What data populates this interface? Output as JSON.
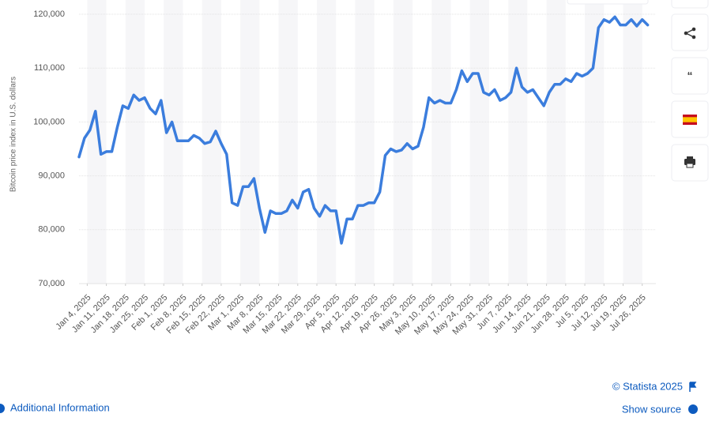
{
  "chart_data": {
    "type": "line",
    "y_label": "Bitcoin price index in U.S. dollars",
    "color": "#3b7ddd",
    "grid": true,
    "x": [
      "2025-01-01",
      "2025-01-03",
      "2025-01-05",
      "2025-01-07",
      "2025-01-09",
      "2025-01-11",
      "2025-01-13",
      "2025-01-15",
      "2025-01-17",
      "2025-01-19",
      "2025-01-21",
      "2025-01-23",
      "2025-01-25",
      "2025-01-27",
      "2025-01-29",
      "2025-01-31",
      "2025-02-02",
      "2025-02-04",
      "2025-02-06",
      "2025-02-08",
      "2025-02-10",
      "2025-02-12",
      "2025-02-14",
      "2025-02-16",
      "2025-02-18",
      "2025-02-20",
      "2025-02-22",
      "2025-02-24",
      "2025-02-26",
      "2025-02-28",
      "2025-03-02",
      "2025-03-04",
      "2025-03-06",
      "2025-03-08",
      "2025-03-10",
      "2025-03-12",
      "2025-03-14",
      "2025-03-16",
      "2025-03-18",
      "2025-03-20",
      "2025-03-22",
      "2025-03-24",
      "2025-03-26",
      "2025-03-28",
      "2025-03-30",
      "2025-04-01",
      "2025-04-03",
      "2025-04-05",
      "2025-04-07",
      "2025-04-09",
      "2025-04-11",
      "2025-04-13",
      "2025-04-15",
      "2025-04-17",
      "2025-04-19",
      "2025-04-21",
      "2025-04-23",
      "2025-04-25",
      "2025-04-27",
      "2025-04-29",
      "2025-05-01",
      "2025-05-03",
      "2025-05-05",
      "2025-05-07",
      "2025-05-09",
      "2025-05-11",
      "2025-05-13",
      "2025-05-15",
      "2025-05-17",
      "2025-05-19",
      "2025-05-21",
      "2025-05-23",
      "2025-05-25",
      "2025-05-27",
      "2025-05-29",
      "2025-05-31",
      "2025-06-02",
      "2025-06-04",
      "2025-06-06",
      "2025-06-08",
      "2025-06-10",
      "2025-06-12",
      "2025-06-14",
      "2025-06-16",
      "2025-06-18",
      "2025-06-20",
      "2025-06-22",
      "2025-06-24",
      "2025-06-26",
      "2025-06-28",
      "2025-06-30",
      "2025-07-02",
      "2025-07-04",
      "2025-07-06",
      "2025-07-08",
      "2025-07-10",
      "2025-07-12",
      "2025-07-14",
      "2025-07-16",
      "2025-07-18",
      "2025-07-20",
      "2025-07-22",
      "2025-07-24",
      "2025-07-26",
      "2025-07-28"
    ],
    "values": [
      93500,
      97000,
      98500,
      102000,
      94000,
      94500,
      94500,
      99000,
      103000,
      102500,
      105000,
      104000,
      104500,
      102500,
      101500,
      104000,
      98000,
      100000,
      96500,
      96500,
      96500,
      97500,
      97000,
      96000,
      96300,
      98300,
      96000,
      94000,
      85000,
      84500,
      88000,
      88000,
      89500,
      84000,
      79500,
      83500,
      83000,
      83000,
      83500,
      85500,
      84000,
      87000,
      87500,
      84000,
      82500,
      84500,
      83500,
      83500,
      77500,
      82000,
      82000,
      84500,
      84500,
      85000,
      85000,
      87000,
      93800,
      95000,
      94500,
      94800,
      96000,
      95000,
      95500,
      99000,
      104500,
      103500,
      104000,
      103500,
      103500,
      106000,
      109500,
      107500,
      109000,
      109000,
      105500,
      105000,
      106000,
      104000,
      104500,
      105500,
      110000,
      106500,
      105500,
      106000,
      104500,
      103000,
      105500,
      107000,
      107000,
      108000,
      107500,
      109000,
      108500,
      109000,
      110000,
      117500,
      119000,
      118500,
      119500,
      118000,
      118000,
      119000,
      117800,
      119000,
      118000
    ],
    "xlim": [
      "2025-01-01",
      "2025-07-31"
    ],
    "xticks": [
      {
        "value": "2025-01-04",
        "label": "Jan 4, 2025"
      },
      {
        "value": "2025-01-11",
        "label": "Jan 11, 2025"
      },
      {
        "value": "2025-01-18",
        "label": "Jan 18, 2025"
      },
      {
        "value": "2025-01-25",
        "label": "Jan 25, 2025"
      },
      {
        "value": "2025-02-01",
        "label": "Feb 1, 2025"
      },
      {
        "value": "2025-02-08",
        "label": "Feb 8, 2025"
      },
      {
        "value": "2025-02-15",
        "label": "Feb 15, 2025"
      },
      {
        "value": "2025-02-22",
        "label": "Feb 22, 2025"
      },
      {
        "value": "2025-03-01",
        "label": "Mar 1, 2025"
      },
      {
        "value": "2025-03-08",
        "label": "Mar 8, 2025"
      },
      {
        "value": "2025-03-15",
        "label": "Mar 15, 2025"
      },
      {
        "value": "2025-03-22",
        "label": "Mar 22, 2025"
      },
      {
        "value": "2025-03-29",
        "label": "Mar 29, 2025"
      },
      {
        "value": "2025-04-05",
        "label": "Apr 5, 2025"
      },
      {
        "value": "2025-04-12",
        "label": "Apr 12, 2025"
      },
      {
        "value": "2025-04-19",
        "label": "Apr 19, 2025"
      },
      {
        "value": "2025-04-26",
        "label": "Apr 26, 2025"
      },
      {
        "value": "2025-05-03",
        "label": "May 3, 2025"
      },
      {
        "value": "2025-05-10",
        "label": "May 10, 2025"
      },
      {
        "value": "2025-05-17",
        "label": "May 17, 2025"
      },
      {
        "value": "2025-05-24",
        "label": "May 24, 2025"
      },
      {
        "value": "2025-05-31",
        "label": "May 31, 2025"
      },
      {
        "value": "2025-06-07",
        "label": "Jun 7, 2025"
      },
      {
        "value": "2025-06-14",
        "label": "Jun 14, 2025"
      },
      {
        "value": "2025-06-21",
        "label": "Jun 21, 2025"
      },
      {
        "value": "2025-06-28",
        "label": "Jun 28, 2025"
      },
      {
        "value": "2025-07-05",
        "label": "Jul 5, 2025"
      },
      {
        "value": "2025-07-12",
        "label": "Jul 12, 2025"
      },
      {
        "value": "2025-07-19",
        "label": "Jul 19, 2025"
      },
      {
        "value": "2025-07-26",
        "label": "Jul 26, 2025"
      }
    ],
    "ylim": [
      70000,
      120000
    ],
    "yticks": [
      {
        "value": 70000,
        "label": "70,000"
      },
      {
        "value": 80000,
        "label": "80,000"
      },
      {
        "value": 90000,
        "label": "90,000"
      },
      {
        "value": 100000,
        "label": "100,000"
      },
      {
        "value": 110000,
        "label": "110,000"
      },
      {
        "value": 120000,
        "label": "120,000"
      }
    ]
  },
  "ui": {
    "copyright": "© Statista 2025",
    "show_source": "Show source",
    "additional_info": "Additional Information"
  }
}
